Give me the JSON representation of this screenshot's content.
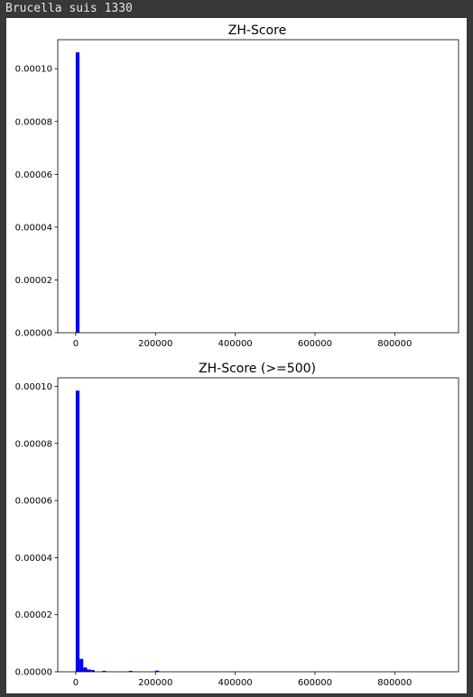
{
  "cell": {
    "output_label": "Brucella suis 1330"
  },
  "colors": {
    "bar": "#0000ff",
    "axes": "#000000",
    "figure_background": "#ffffff",
    "page_background": "#383838"
  },
  "chart_data": [
    {
      "type": "bar",
      "title": "ZH-Score",
      "xlabel": "",
      "ylabel": "",
      "grid": false,
      "xlim": [
        -45000,
        960000
      ],
      "ylim": [
        0,
        0.000111
      ],
      "x_ticks": [
        0,
        200000,
        400000,
        600000,
        800000
      ],
      "x_tick_labels": [
        "0",
        "200000",
        "400000",
        "600000",
        "800000"
      ],
      "y_ticks": [
        0,
        2e-05,
        4e-05,
        6e-05,
        8e-05,
        0.0001
      ],
      "y_tick_labels": [
        "0.00000",
        "0.00002",
        "0.00004",
        "0.00006",
        "0.00008",
        "0.00010"
      ],
      "bin_width": 9500,
      "bins": [
        {
          "x0": 0,
          "value": 0.0001062
        }
      ]
    },
    {
      "type": "bar",
      "title": "ZH-Score (>=500)",
      "xlabel": "",
      "ylabel": "",
      "grid": false,
      "xlim": [
        -45000,
        960000
      ],
      "ylim": [
        0,
        0.000103
      ],
      "x_ticks": [
        0,
        200000,
        400000,
        600000,
        800000
      ],
      "x_tick_labels": [
        "0",
        "200000",
        "400000",
        "600000",
        "800000"
      ],
      "y_ticks": [
        0,
        2e-05,
        4e-05,
        6e-05,
        8e-05,
        0.0001
      ],
      "y_tick_labels": [
        "0.00000",
        "0.00002",
        "0.00004",
        "0.00006",
        "0.00008",
        "0.00010"
      ],
      "bin_width": 9500,
      "bins": [
        {
          "x0": 0,
          "value": 9.85e-05
        },
        {
          "x0": 9500,
          "value": 4.5e-06
        },
        {
          "x0": 19000,
          "value": 1.5e-06
        },
        {
          "x0": 28500,
          "value": 8e-07
        },
        {
          "x0": 38000,
          "value": 6e-07
        },
        {
          "x0": 66500,
          "value": 3e-07
        },
        {
          "x0": 133000,
          "value": 3e-07
        },
        {
          "x0": 199500,
          "value": 4e-07
        }
      ]
    }
  ]
}
